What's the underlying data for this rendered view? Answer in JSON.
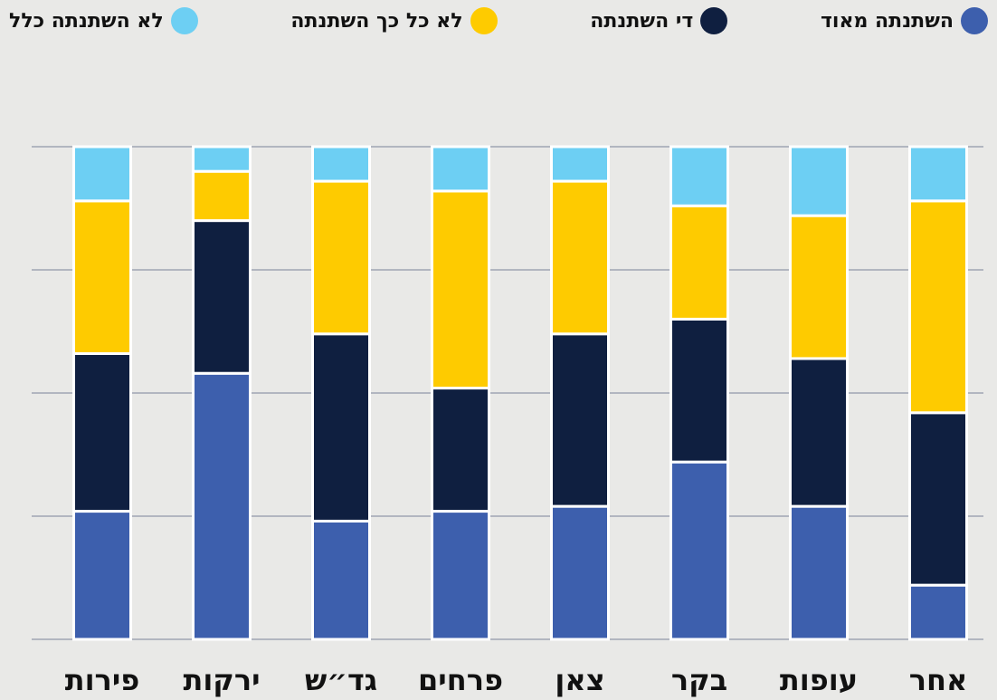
{
  "chart_data": {
    "type": "stacked_bar",
    "categories": [
      "פירות",
      "ירקות",
      "גד״ש",
      "פרחים",
      "צאן",
      "בקר",
      "עופות",
      "אחר"
    ],
    "series": [
      {
        "name": "השתנתה מאוד",
        "color": "#3d5fad",
        "values": [
          26,
          54,
          24,
          26,
          27,
          36,
          27,
          11
        ]
      },
      {
        "name": "די השתנתה",
        "color": "#0f1f40",
        "values": [
          32,
          31,
          38,
          25,
          35,
          29,
          30,
          35
        ]
      },
      {
        "name": "לא כל כך השתנתה",
        "color": "#fecb00",
        "values": [
          31,
          10,
          31,
          40,
          31,
          23,
          29,
          43
        ]
      },
      {
        "name": "לא השתנתה כלל",
        "color": "#6dcff3",
        "values": [
          11,
          5,
          7,
          9,
          7,
          12,
          14,
          11
        ]
      }
    ],
    "ylim": [
      0,
      100
    ],
    "yticks": [
      0,
      25,
      50,
      75,
      100
    ],
    "grid": true
  }
}
